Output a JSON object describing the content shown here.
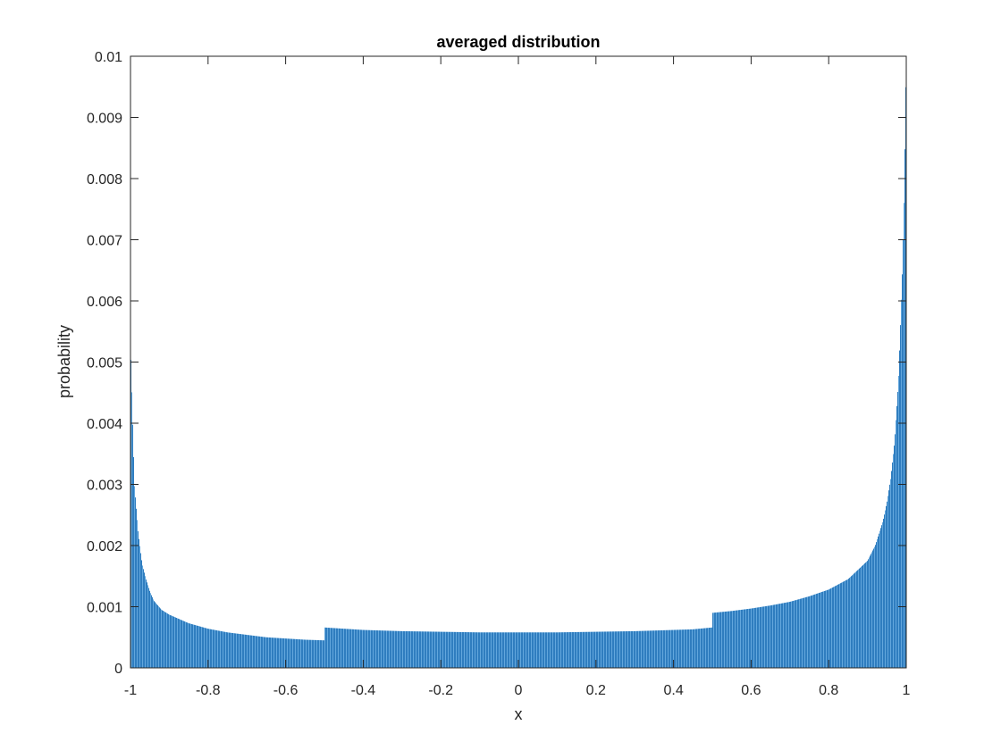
{
  "chart_data": {
    "type": "bar",
    "title": "averaged distribution",
    "xlabel": "x",
    "ylabel": "probability",
    "xlim": [
      -1,
      1
    ],
    "ylim": [
      0,
      0.01
    ],
    "grid": false,
    "bar_color": "#2f7dbf",
    "bar_edge_color": "#63a7dd",
    "xticks": [
      "-1",
      "-0.8",
      "-0.6",
      "-0.4",
      "-0.2",
      "0",
      "0.2",
      "0.4",
      "0.6",
      "0.8",
      "1"
    ],
    "yticks": [
      "0",
      "0.001",
      "0.002",
      "0.003",
      "0.004",
      "0.005",
      "0.006",
      "0.007",
      "0.008",
      "0.009",
      "0.01"
    ],
    "series": [
      {
        "x": [
          -1.0,
          -0.99,
          -0.98,
          -0.97,
          -0.96,
          -0.95,
          -0.94,
          -0.92,
          -0.9,
          -0.85,
          -0.8,
          -0.75,
          -0.7,
          -0.65,
          -0.6,
          -0.55,
          -0.501,
          -0.499,
          -0.45,
          -0.4,
          -0.3,
          -0.2,
          -0.1,
          0.0,
          0.1,
          0.2,
          0.3,
          0.4,
          0.45,
          0.499,
          0.501,
          0.55,
          0.6,
          0.65,
          0.7,
          0.75,
          0.8,
          0.85,
          0.9,
          0.92,
          0.94,
          0.95,
          0.96,
          0.97,
          0.98,
          0.99,
          0.995,
          1.0
        ],
        "values": [
          0.0053,
          0.003,
          0.0022,
          0.0017,
          0.00145,
          0.00125,
          0.0011,
          0.00095,
          0.00087,
          0.00073,
          0.00064,
          0.00058,
          0.00054,
          0.0005,
          0.00048,
          0.00046,
          0.00045,
          0.00066,
          0.00064,
          0.00062,
          0.0006,
          0.00059,
          0.00058,
          0.00058,
          0.00058,
          0.00059,
          0.0006,
          0.00062,
          0.00063,
          0.00066,
          0.0009,
          0.00093,
          0.00097,
          0.00102,
          0.00108,
          0.00117,
          0.00128,
          0.00145,
          0.00175,
          0.002,
          0.0024,
          0.0027,
          0.0031,
          0.0037,
          0.0047,
          0.0065,
          0.0078,
          0.01
        ]
      }
    ]
  }
}
